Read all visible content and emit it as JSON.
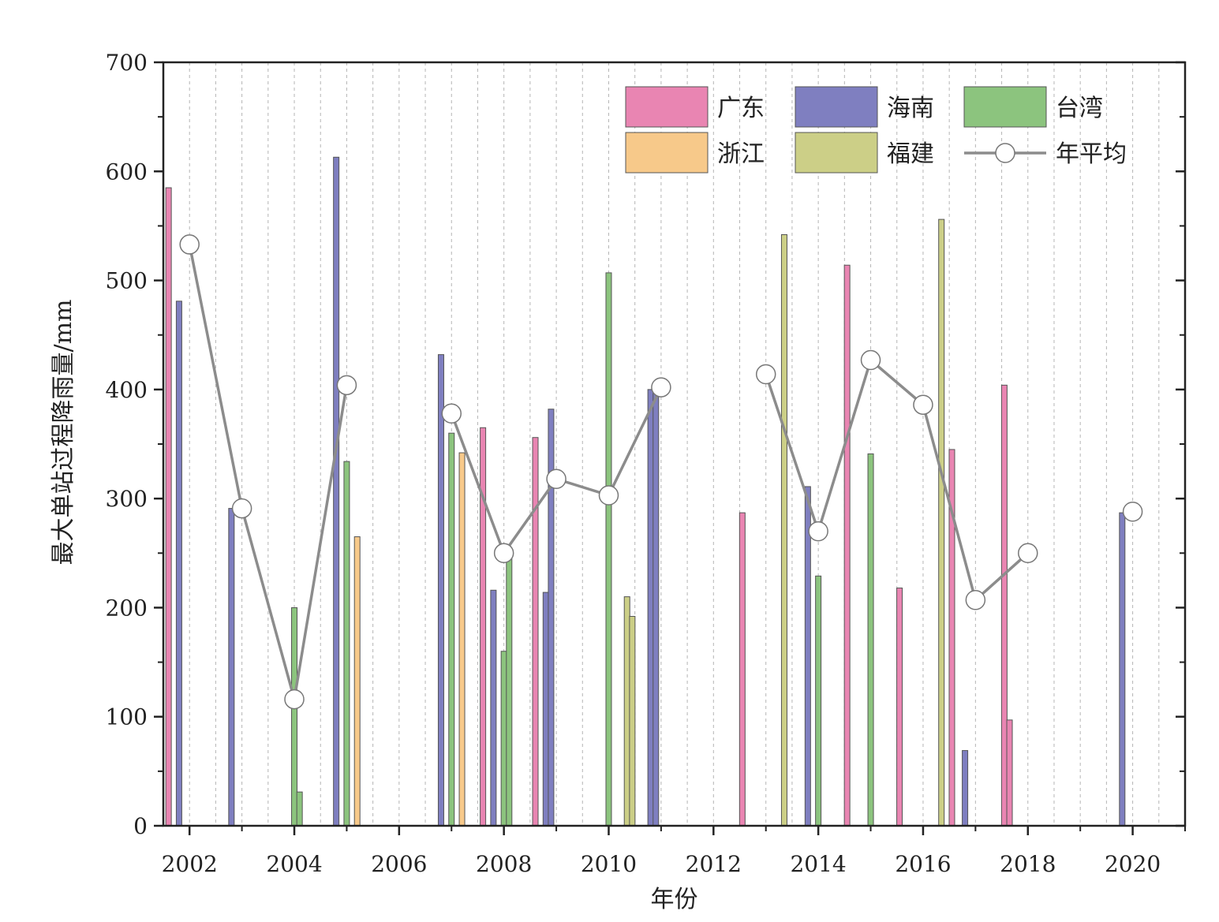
{
  "chart_data": {
    "type": "bar",
    "xlabel": "年份",
    "ylabel": "最大单站过程降雨量/mm",
    "xlim": [
      2001.5,
      2021
    ],
    "ylim": [
      0,
      700
    ],
    "x_ticks": [
      2002,
      2004,
      2006,
      2008,
      2010,
      2012,
      2014,
      2016,
      2018,
      2020
    ],
    "y_ticks": [
      0,
      100,
      200,
      300,
      400,
      500,
      600,
      700
    ],
    "grid": "vertical dashed",
    "legend_position": "top-right",
    "colors": {
      "广东": "#e985b2",
      "海南": "#7f7fc0",
      "台湾": "#8cc47e",
      "浙江": "#f7c98a",
      "福建": "#cccf87",
      "年平均": "#8c8c8c"
    },
    "legend": [
      "广东",
      "海南",
      "台湾",
      "浙江",
      "福建",
      "年平均"
    ],
    "bars": [
      {
        "series": "广东",
        "x": 2001.6,
        "value": 585
      },
      {
        "series": "海南",
        "x": 2001.8,
        "value": 481
      },
      {
        "series": "海南",
        "x": 2002.8,
        "value": 291
      },
      {
        "series": "台湾",
        "x": 2004.0,
        "value": 200
      },
      {
        "series": "台湾",
        "x": 2004.1,
        "value": 31
      },
      {
        "series": "海南",
        "x": 2004.8,
        "value": 613
      },
      {
        "series": "台湾",
        "x": 2005.0,
        "value": 334
      },
      {
        "series": "浙江",
        "x": 2005.2,
        "value": 265
      },
      {
        "series": "海南",
        "x": 2006.8,
        "value": 432
      },
      {
        "series": "台湾",
        "x": 2007.0,
        "value": 360
      },
      {
        "series": "浙江",
        "x": 2007.2,
        "value": 342
      },
      {
        "series": "广东",
        "x": 2007.6,
        "value": 365
      },
      {
        "series": "海南",
        "x": 2007.8,
        "value": 216
      },
      {
        "series": "台湾",
        "x": 2008.0,
        "value": 160
      },
      {
        "series": "台湾",
        "x": 2008.1,
        "value": 250
      },
      {
        "series": "广东",
        "x": 2008.6,
        "value": 356
      },
      {
        "series": "海南",
        "x": 2008.8,
        "value": 214
      },
      {
        "series": "海南",
        "x": 2008.9,
        "value": 382
      },
      {
        "series": "台湾",
        "x": 2010.0,
        "value": 507
      },
      {
        "series": "福建",
        "x": 2010.35,
        "value": 210
      },
      {
        "series": "福建",
        "x": 2010.45,
        "value": 192
      },
      {
        "series": "海南",
        "x": 2010.8,
        "value": 400
      },
      {
        "series": "海南",
        "x": 2010.9,
        "value": 400
      },
      {
        "series": "广东",
        "x": 2012.55,
        "value": 287
      },
      {
        "series": "福建",
        "x": 2013.35,
        "value": 542
      },
      {
        "series": "海南",
        "x": 2013.8,
        "value": 311
      },
      {
        "series": "台湾",
        "x": 2014.0,
        "value": 229
      },
      {
        "series": "广东",
        "x": 2014.55,
        "value": 514
      },
      {
        "series": "台湾",
        "x": 2015.0,
        "value": 341
      },
      {
        "series": "广东",
        "x": 2015.55,
        "value": 218
      },
      {
        "series": "福建",
        "x": 2016.35,
        "value": 556
      },
      {
        "series": "广东",
        "x": 2016.55,
        "value": 345
      },
      {
        "series": "海南",
        "x": 2016.8,
        "value": 69
      },
      {
        "series": "广东",
        "x": 2017.55,
        "value": 404
      },
      {
        "series": "广东",
        "x": 2017.65,
        "value": 97
      },
      {
        "series": "海南",
        "x": 2019.8,
        "value": 287
      }
    ],
    "line_series": {
      "name": "年平均",
      "segments": [
        [
          [
            2002,
            533
          ],
          [
            2003,
            291
          ],
          [
            2004,
            116
          ],
          [
            2005,
            404
          ]
        ],
        [
          [
            2007,
            378
          ],
          [
            2008,
            250
          ],
          [
            2009,
            318
          ],
          [
            2010,
            303
          ],
          [
            2011,
            402
          ]
        ],
        [
          [
            2013,
            414
          ],
          [
            2014,
            270
          ],
          [
            2015,
            427
          ],
          [
            2016,
            386
          ],
          [
            2017,
            207
          ],
          [
            2018,
            250
          ]
        ],
        [
          [
            2020,
            288
          ]
        ]
      ]
    }
  }
}
